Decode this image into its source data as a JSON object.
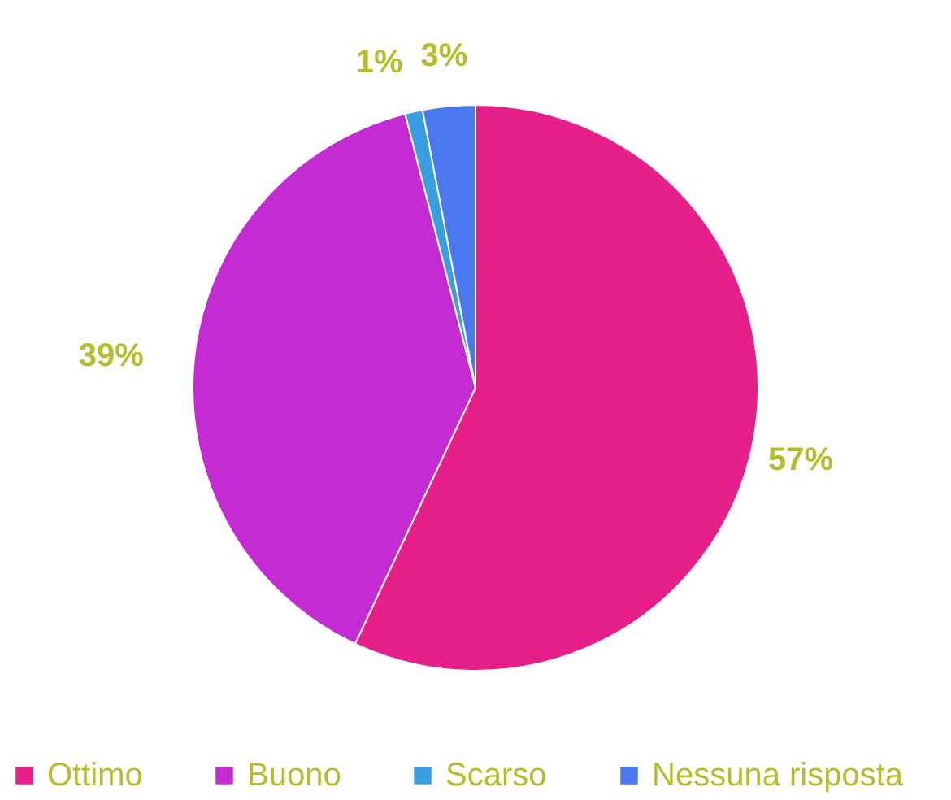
{
  "chart_data": {
    "type": "pie",
    "categories": [
      "Ottimo",
      "Buono",
      "Scarso",
      "Nessuna risposta"
    ],
    "values": [
      57,
      39,
      1,
      3
    ],
    "value_labels": [
      "57%",
      "39%",
      "1%",
      "3%"
    ],
    "colors": [
      "#e61f8a",
      "#c42bd3",
      "#3a9fe0",
      "#4a78ee"
    ],
    "legend": "bottom"
  }
}
